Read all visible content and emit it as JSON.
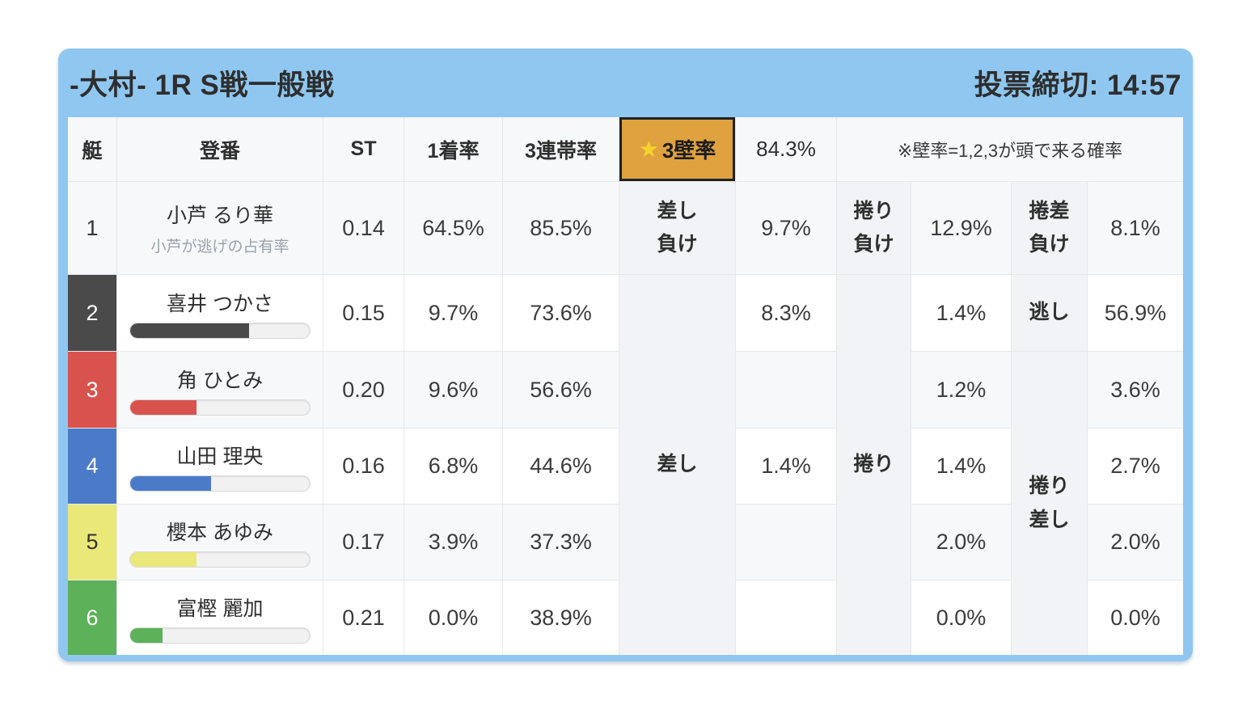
{
  "header": {
    "title": "-大村- 1R S戦一般戦",
    "deadline": "投票締切: 14:57"
  },
  "table": {
    "col_headers": {
      "boat": "艇",
      "reg": "登番",
      "st": "ST",
      "win1": "1着率",
      "top3": "3連帯率"
    },
    "kabe": {
      "star": "★",
      "label": "3壁率",
      "value": "84.3%",
      "note": "※壁率=1,2,3が頭で来る確率"
    },
    "merged_labels": {
      "sashi": "差し",
      "makuri": "捲り",
      "makurizashi": [
        "捲り",
        "差し"
      ],
      "nigashi": "逃し"
    },
    "rows": [
      {
        "boat": "1",
        "name": "小芦 るり華",
        "subtitle": "小芦が逃げの占有率",
        "st": "0.14",
        "win1": "64.5%",
        "top3": "85.5%",
        "num_bg": "#f7f8fa",
        "num_fg": "#333333",
        "k1_label": [
          "差し",
          "負け"
        ],
        "k1": "9.7%",
        "k2_label": [
          "捲り",
          "負け"
        ],
        "k2": "12.9%",
        "k3_label": [
          "捲差",
          "負け"
        ],
        "k3": "8.1%"
      },
      {
        "boat": "2",
        "name": "喜井 つかさ",
        "st": "0.15",
        "win1": "9.7%",
        "top3": "73.6%",
        "num_bg": "#4a4a4a",
        "num_fg": "#ffffff",
        "bar_percent": 66,
        "bar_color": "#4a4a4a",
        "k1": "8.3%",
        "k2": "1.4%",
        "k3": "56.9%"
      },
      {
        "boat": "3",
        "name": "角 ひとみ",
        "st": "0.20",
        "win1": "9.6%",
        "top3": "56.6%",
        "num_bg": "#d9534e",
        "num_fg": "#ffffff",
        "bar_percent": 37,
        "bar_color": "#d9534e",
        "k1": "",
        "k2": "1.2%",
        "k3": "3.6%"
      },
      {
        "boat": "4",
        "name": "山田 理央",
        "st": "0.16",
        "win1": "6.8%",
        "top3": "44.6%",
        "num_bg": "#4b7bc8",
        "num_fg": "#ffffff",
        "bar_percent": 45,
        "bar_color": "#4b7bc8",
        "k1": "1.4%",
        "k2": "1.4%",
        "k3": "2.7%"
      },
      {
        "boat": "5",
        "name": "櫻本 あゆみ",
        "st": "0.17",
        "win1": "3.9%",
        "top3": "37.3%",
        "num_bg": "#ebe87a",
        "num_fg": "#333333",
        "bar_percent": 37,
        "bar_color": "#ebe87a",
        "k1": "",
        "k2": "2.0%",
        "k3": "2.0%"
      },
      {
        "boat": "6",
        "name": "富樫 麗加",
        "st": "0.21",
        "win1": "0.0%",
        "top3": "38.9%",
        "num_bg": "#5cb159",
        "num_fg": "#ffffff",
        "bar_percent": 18,
        "bar_color": "#5cb159",
        "k1": "",
        "k2": "0.0%",
        "k3": "0.0%"
      }
    ]
  },
  "colors": {
    "frame_blue": "#8fc7f0",
    "kabe_orange": "#e0a23f",
    "star_yellow": "#f5d42a",
    "stripe_gray": "#f7f8fa",
    "label_gray": "#f2f3f6",
    "gridline": "#e7e8eb"
  }
}
